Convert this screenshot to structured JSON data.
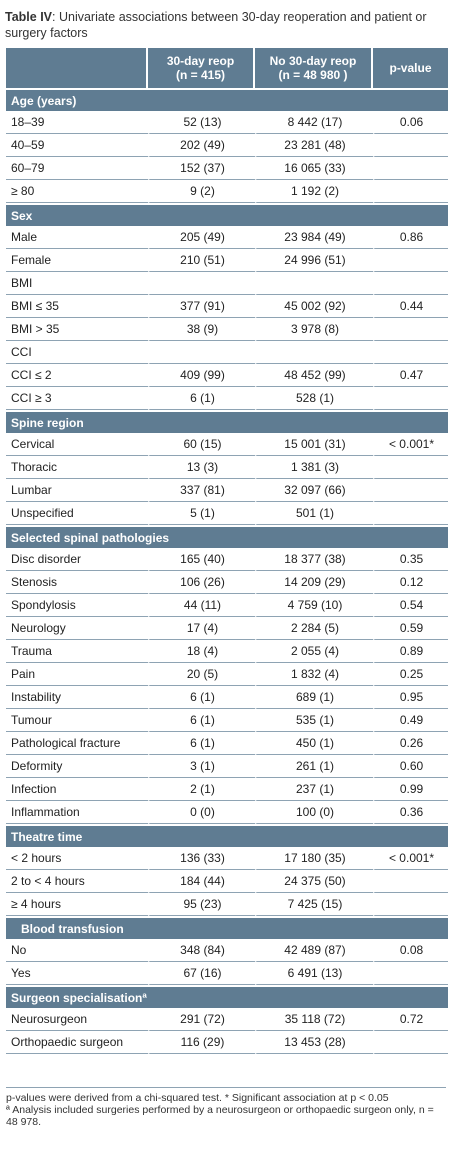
{
  "title": {
    "bold": "Table IV",
    "rest": ": Univariate associations between 30-day reoperation and patient or surgery factors"
  },
  "header": {
    "col1_line1": "30-day reop",
    "col1_line2": "(n = 415)",
    "col2_line1": "No 30-day reop",
    "col2_line2": "(n = 48 980 )",
    "col3": "p-value"
  },
  "sections": [
    {
      "title": "Age (years)",
      "rows": [
        {
          "label": "18–39",
          "a": "52 (13)",
          "b": "8 442 (17)",
          "p": "0.06"
        },
        {
          "label": "40–59",
          "a": "202 (49)",
          "b": "23 281 (48)",
          "p": ""
        },
        {
          "label": "60–79",
          "a": "152 (37)",
          "b": "16 065 (33)",
          "p": ""
        },
        {
          "label": "≥ 80",
          "a": "9 (2)",
          "b": "1 192 (2)",
          "p": ""
        }
      ]
    },
    {
      "title": "Sex",
      "rows": [
        {
          "label": "Male",
          "a": "205 (49)",
          "b": "23 984 (49)",
          "p": "0.86"
        },
        {
          "label": "Female",
          "a": "210 (51)",
          "b": "24 996 (51)",
          "p": ""
        },
        {
          "label": "BMI",
          "a": "",
          "b": "",
          "p": ""
        },
        {
          "label": "BMI ≤ 35",
          "a": "377 (91)",
          "b": "45 002 (92)",
          "p": "0.44"
        },
        {
          "label": "BMI > 35",
          "a": "38 (9)",
          "b": "3 978 (8)",
          "p": ""
        },
        {
          "label": "CCI",
          "a": "",
          "b": "",
          "p": ""
        },
        {
          "label": "CCI ≤ 2",
          "a": "409 (99)",
          "b": "48 452 (99)",
          "p": "0.47"
        },
        {
          "label": "CCI ≥ 3",
          "a": "6 (1)",
          "b": "528 (1)",
          "p": ""
        }
      ]
    },
    {
      "title": "Spine region",
      "rows": [
        {
          "label": "Cervical",
          "a": "60 (15)",
          "b": "15 001 (31)",
          "p": "< 0.001*"
        },
        {
          "label": "Thoracic",
          "a": "13 (3)",
          "b": "1 381 (3)",
          "p": ""
        },
        {
          "label": "Lumbar",
          "a": "337 (81)",
          "b": "32 097 (66)",
          "p": ""
        },
        {
          "label": "Unspecified",
          "a": "5 (1)",
          "b": "501 (1)",
          "p": ""
        }
      ]
    },
    {
      "title": "Selected spinal pathologies",
      "rows": [
        {
          "label": "Disc disorder",
          "a": "165 (40)",
          "b": "18 377 (38)",
          "p": "0.35"
        },
        {
          "label": "Stenosis",
          "a": "106 (26)",
          "b": "14 209 (29)",
          "p": "0.12"
        },
        {
          "label": "Spondylosis",
          "a": "44 (11)",
          "b": "4 759 (10)",
          "p": "0.54"
        },
        {
          "label": "Neurology",
          "a": "17 (4)",
          "b": "2 284 (5)",
          "p": "0.59"
        },
        {
          "label": "Trauma",
          "a": "18 (4)",
          "b": "2 055 (4)",
          "p": "0.89"
        },
        {
          "label": "Pain",
          "a": "20 (5)",
          "b": "1 832 (4)",
          "p": "0.25"
        },
        {
          "label": "Instability",
          "a": "6 (1)",
          "b": "689 (1)",
          "p": "0.95"
        },
        {
          "label": "Tumour",
          "a": "6 (1)",
          "b": "535 (1)",
          "p": "0.49"
        },
        {
          "label": "Pathological fracture",
          "a": "6 (1)",
          "b": "450 (1)",
          "p": "0.26"
        },
        {
          "label": "Deformity",
          "a": "3 (1)",
          "b": "261 (1)",
          "p": "0.60"
        },
        {
          "label": "Infection",
          "a": "2 (1)",
          "b": "237 (1)",
          "p": "0.99"
        },
        {
          "label": "Inflammation",
          "a": "0 (0)",
          "b": "100 (0)",
          "p": "0.36"
        }
      ]
    },
    {
      "title": "Theatre time",
      "rows": [
        {
          "label": "< 2 hours",
          "a": "136 (33)",
          "b": "17 180 (35)",
          "p": "< 0.001*"
        },
        {
          "label": "2 to < 4 hours",
          "a": "184 (44)",
          "b": "24 375 (50)",
          "p": ""
        },
        {
          "label": "≥ 4 hours",
          "a": "95 (23)",
          "b": "7 425 (15)",
          "p": ""
        }
      ]
    },
    {
      "title": "   Blood transfusion",
      "rows": [
        {
          "label": "No",
          "a": "348 (84)",
          "b": "42 489 (87)",
          "p": "0.08"
        },
        {
          "label": "Yes",
          "a": "67 (16)",
          "b": "6 491 (13)",
          "p": ""
        }
      ]
    },
    {
      "title": "Surgeon specialisationª",
      "rows": [
        {
          "label": "Neurosurgeon",
          "a": "291 (72)",
          "b": "35 118 (72)",
          "p": "0.72"
        },
        {
          "label": "Orthopaedic surgeon",
          "a": "116 (29)",
          "b": "13 453 (28)",
          "p": ""
        }
      ]
    }
  ],
  "notes": {
    "line1": "p-values were derived from a chi-squared test. * Significant association at p < 0.05",
    "line2": "ª Analysis included surgeries performed by a neurosurgeon or orthopaedic surgeon only, n = 48 978."
  },
  "colors": {
    "header_bg": "#5f7c92",
    "rule": "#8ea3b3"
  }
}
